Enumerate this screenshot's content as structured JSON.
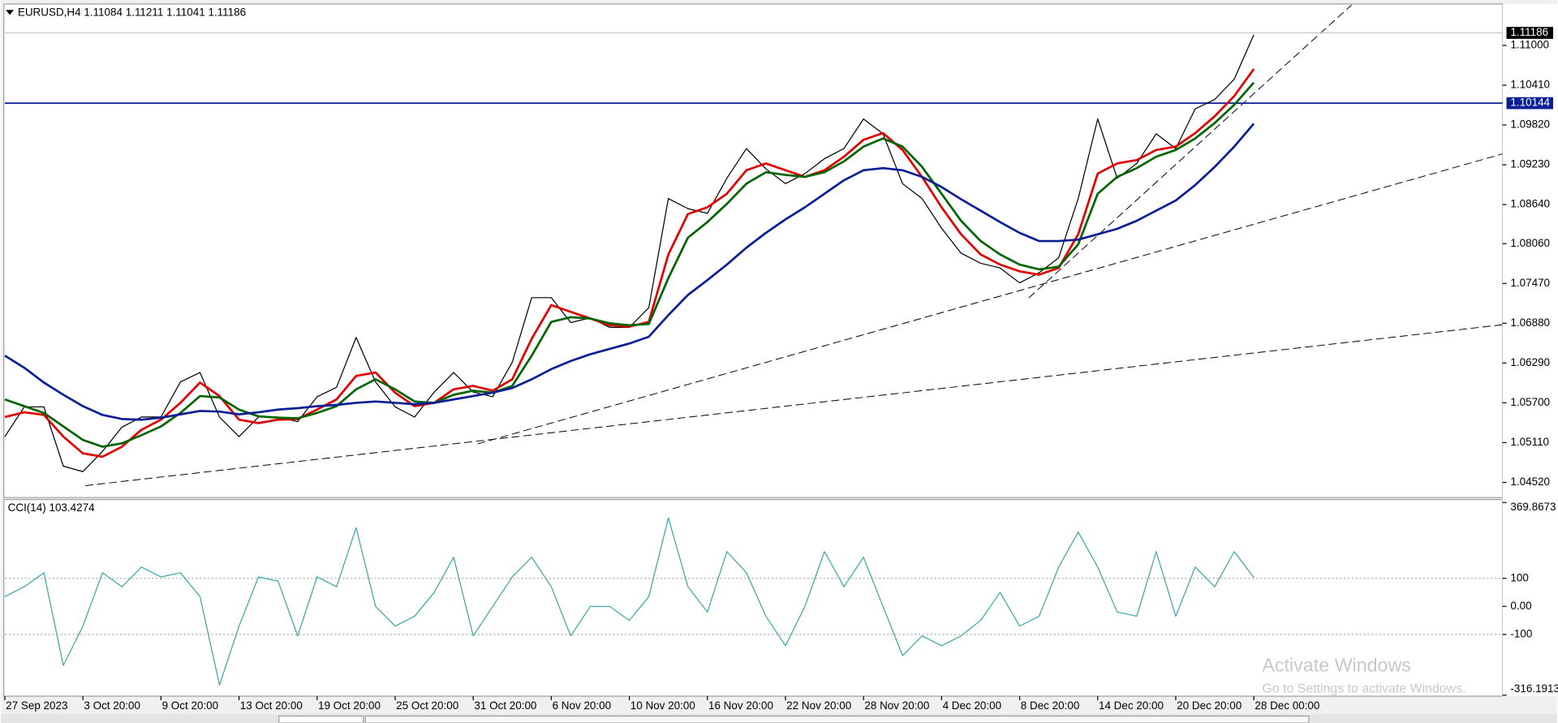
{
  "chart_data": [
    {
      "type": "line",
      "title": "EURUSD,H4  1.11084 1.11211 1.11041 1.11186",
      "categories": [
        "27 Sep 2023",
        null,
        null,
        null,
        "3 Oct 20:00",
        null,
        null,
        null,
        "9 Oct 20:00",
        null,
        null,
        null,
        "13 Oct 20:00",
        null,
        null,
        null,
        "19 Oct 20:00",
        null,
        null,
        null,
        "25 Oct 20:00",
        null,
        null,
        null,
        "31 Oct 20:00",
        null,
        null,
        null,
        "6 Nov 20:00",
        null,
        null,
        null,
        "10 Nov 20:00",
        null,
        null,
        null,
        "16 Nov 20:00",
        null,
        null,
        null,
        "22 Nov 20:00",
        null,
        null,
        null,
        "28 Nov 20:00",
        null,
        null,
        null,
        "4 Dec 20:00",
        null,
        null,
        null,
        "8 Dec 20:00",
        null,
        null,
        null,
        "14 Dec 20:00",
        null,
        null,
        null,
        "20 Dec 20:00",
        null,
        null,
        null,
        "28 Dec 00:00"
      ],
      "series": [
        {
          "color": "#000000",
          "values": [
            1.052,
            1.0564,
            1.0564,
            1.0476,
            1.0468,
            1.0498,
            1.0534,
            1.0549,
            1.0549,
            1.0601,
            1.0615,
            1.0549,
            1.052,
            1.0549,
            1.0549,
            1.0542,
            1.0579,
            1.0593,
            1.0667,
            1.0601,
            1.0564,
            1.0549,
            1.0586,
            1.0615,
            1.0586,
            1.0579,
            1.063,
            1.0726,
            1.0726,
            1.0689,
            1.0696,
            1.0682,
            1.0682,
            1.0711,
            1.0873,
            1.0858,
            1.0851,
            1.0903,
            1.0947,
            1.0917,
            1.0895,
            1.091,
            1.0932,
            1.0947,
            1.0991,
            1.0969,
            1.0895,
            1.0873,
            1.0829,
            1.0792,
            1.0777,
            1.077,
            1.0748,
            1.0763,
            1.0785,
            1.0873,
            1.0991,
            1.0903,
            1.0925,
            1.0969,
            1.0947,
            1.1006,
            1.102,
            1.105,
            1.1116
          ]
        },
        {
          "color": "#e00000",
          "values": [
            1.0549,
            1.0556,
            1.0552,
            1.052,
            1.0495,
            1.049,
            1.0505,
            1.053,
            1.0545,
            1.057,
            1.06,
            1.058,
            1.0545,
            1.054,
            1.0545,
            1.0546,
            1.056,
            1.0575,
            1.061,
            1.0615,
            1.0585,
            1.0565,
            1.057,
            1.059,
            1.0595,
            1.0588,
            1.0605,
            1.0665,
            1.0715,
            1.0705,
            1.0695,
            1.0685,
            1.0683,
            1.069,
            1.079,
            1.085,
            1.086,
            1.088,
            1.0915,
            1.0925,
            1.0915,
            1.0905,
            1.0915,
            1.0935,
            1.096,
            1.097,
            1.0945,
            1.0905,
            1.086,
            1.082,
            1.079,
            1.0775,
            1.0765,
            1.076,
            1.077,
            1.082,
            1.091,
            1.0925,
            1.093,
            1.0945,
            1.095,
            1.097,
            1.0995,
            1.1025,
            1.1065
          ]
        },
        {
          "color": "#006400",
          "values": [
            1.0575,
            1.0565,
            1.0555,
            1.0535,
            1.0515,
            1.0505,
            1.051,
            1.0522,
            1.0535,
            1.0555,
            1.058,
            1.0578,
            1.056,
            1.055,
            1.0548,
            1.0547,
            1.0555,
            1.0565,
            1.059,
            1.0605,
            1.059,
            1.0572,
            1.057,
            1.0582,
            1.0588,
            1.0585,
            1.0595,
            1.064,
            1.069,
            1.0697,
            1.0695,
            1.0688,
            1.0685,
            1.0687,
            1.0755,
            1.0815,
            1.0838,
            1.0865,
            1.0895,
            1.0912,
            1.0908,
            1.0905,
            1.0912,
            1.0928,
            1.095,
            1.0962,
            1.095,
            1.092,
            1.088,
            1.084,
            1.081,
            1.079,
            1.0775,
            1.0768,
            1.0772,
            1.0805,
            1.088,
            1.0905,
            1.0918,
            1.0935,
            1.0945,
            1.0962,
            1.0985,
            1.1012,
            1.1045
          ]
        },
        {
          "color": "#0a1e96",
          "values": [
            1.064,
            1.0622,
            1.06,
            1.0582,
            1.0565,
            1.0552,
            1.0546,
            1.0545,
            1.0548,
            1.0553,
            1.0558,
            1.0557,
            1.0553,
            1.0556,
            1.056,
            1.0562,
            1.0565,
            1.0567,
            1.057,
            1.0572,
            1.057,
            1.0568,
            1.057,
            1.0575,
            1.058,
            1.0585,
            1.0592,
            1.0605,
            1.062,
            1.0632,
            1.0642,
            1.065,
            1.0658,
            1.0668,
            1.07,
            1.073,
            1.0752,
            1.0775,
            1.08,
            1.0822,
            1.0842,
            1.086,
            1.088,
            1.09,
            1.0915,
            1.0918,
            1.0915,
            1.0905,
            1.089,
            1.0872,
            1.0855,
            1.0838,
            1.0822,
            1.081,
            1.081,
            1.0812,
            1.082,
            1.0828,
            1.084,
            1.0855,
            1.087,
            1.0893,
            1.092,
            1.095,
            1.0984
          ]
        }
      ],
      "ylim": [
        1.0431,
        1.116
      ],
      "yticks": [
        {
          "value": 1.11,
          "label": "1.11000"
        },
        {
          "value": 1.1041,
          "label": "1.10410"
        },
        {
          "value": 1.0982,
          "label": "1.09820"
        },
        {
          "value": 1.0923,
          "label": "1.09230"
        },
        {
          "value": 1.0864,
          "label": "1.08640"
        },
        {
          "value": 1.0806,
          "label": "1.08060"
        },
        {
          "value": 1.0747,
          "label": "1.07470"
        },
        {
          "value": 1.0688,
          "label": "1.06880"
        },
        {
          "value": 1.0629,
          "label": "1.06290"
        },
        {
          "value": 1.057,
          "label": "1.05700"
        },
        {
          "value": 1.0511,
          "label": "1.05110"
        },
        {
          "value": 1.0452,
          "label": "1.04520"
        }
      ],
      "hline": {
        "value": 1.10144,
        "label": "1.10144",
        "color": "#0a1e96"
      },
      "last_price": 1.11186
    },
    {
      "type": "line",
      "title": "CCI(14) 103.4274",
      "series": [
        {
          "color": "#3aa7a7",
          "values": [
            35,
            70,
            120,
            -210,
            -70,
            120,
            70,
            140,
            105,
            120,
            35,
            -280,
            -70,
            105,
            90,
            -105,
            105,
            70,
            280,
            0,
            -70,
            -35,
            50,
            175,
            -105,
            0,
            105,
            175,
            70,
            -105,
            0,
            0,
            -50,
            35,
            315,
            70,
            -20,
            195,
            120,
            -35,
            -140,
            0,
            195,
            70,
            175,
            0,
            -175,
            -105,
            -140,
            -105,
            -50,
            50,
            -70,
            -35,
            140,
            265,
            140,
            -20,
            -35,
            195,
            -35,
            140,
            70,
            195,
            103
          ]
        }
      ],
      "ylim": [
        -316.1913,
        369.8673
      ],
      "yticks": [
        369.8673,
        100,
        {
          "value": 0,
          "label": "0.00"
        },
        -100,
        -316.1913
      ],
      "levels": [
        100,
        -100
      ]
    }
  ],
  "watermark": {
    "title": "Activate Windows",
    "subtitle": "Go to Settings to activate Windows."
  }
}
